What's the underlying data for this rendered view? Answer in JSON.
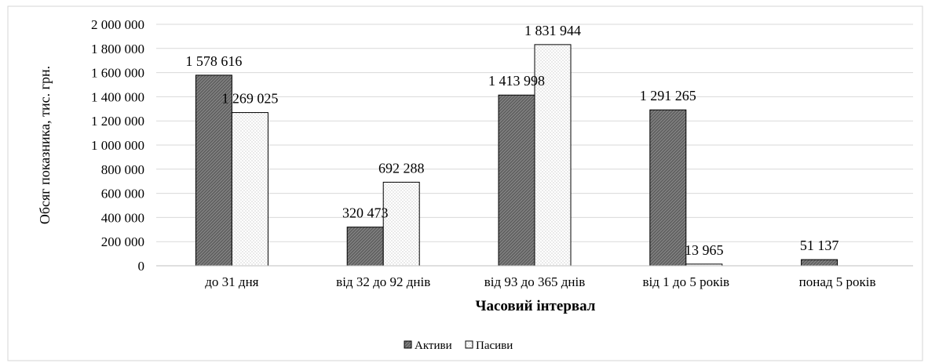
{
  "chart_data": {
    "type": "bar",
    "title": "",
    "xlabel": "Часовий інтервал",
    "ylabel": "Обсяг показника, тис. грн.",
    "categories": [
      "до 31 дня",
      "від 32 до 92 днів",
      "від 93 до 365 днів",
      "від 1 до 5 років",
      "понад 5 років"
    ],
    "series": [
      {
        "name": "Активи",
        "values": [
          1578616,
          320473,
          1413998,
          1291265,
          51137
        ],
        "labels": [
          "1 578 616",
          "320 473",
          "1 413 998",
          "1 291 265",
          "51 137"
        ],
        "color": "#6b6b6b",
        "pattern": "diagonal-hatch"
      },
      {
        "name": "Пасиви",
        "values": [
          1269025,
          692288,
          1831944,
          13965,
          null
        ],
        "labels": [
          "1 269 025",
          "692 288",
          "1 831 944",
          "13 965",
          null
        ],
        "color": "#ffffff",
        "pattern": "dots"
      }
    ],
    "ylim": [
      0,
      2000000
    ],
    "yticks": [
      0,
      200000,
      400000,
      600000,
      800000,
      1000000,
      1200000,
      1400000,
      1600000,
      1800000,
      2000000
    ],
    "ytick_labels": [
      "0",
      "200 000",
      "400 000",
      "600 000",
      "800 000",
      "1 000 000",
      "1 200 000",
      "1 400 000",
      "1 600 000",
      "1 800 000",
      "2 000 000"
    ],
    "grid": true,
    "legend": "bottom-center"
  }
}
